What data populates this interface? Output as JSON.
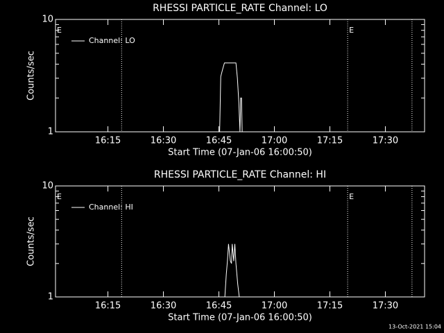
{
  "chart_data": [
    {
      "type": "line",
      "title": "RHESSI PARTICLE_RATE Channel: LO",
      "xlabel": "Start Time (07-Jan-06 16:00:50)",
      "ylabel": "Counts/sec",
      "ylog": true,
      "ylim": [
        1,
        10
      ],
      "yticks": [
        1,
        10
      ],
      "minor_yticks": [
        2,
        3,
        4,
        5,
        6,
        7,
        8,
        9
      ],
      "xlim": [
        960.83,
        1060.6
      ],
      "xticks": [
        {
          "value": 975,
          "label": "16:15"
        },
        {
          "value": 990,
          "label": "16:30"
        },
        {
          "value": 1005,
          "label": "16:45"
        },
        {
          "value": 1020,
          "label": "17:00"
        },
        {
          "value": 1035,
          "label": "17:15"
        },
        {
          "value": 1050,
          "label": "17:30"
        }
      ],
      "vlines": [
        978.7,
        1039.8,
        1057.2
      ],
      "annotations": [
        {
          "text": "E",
          "x": 960.83
        },
        {
          "text": "E",
          "x": 1039.8
        }
      ],
      "legend": "upper left",
      "series": [
        {
          "name": "Channel: LO",
          "color": "#ffffff",
          "x": [
            1005.2,
            1005.5,
            1006.0,
            1006.5,
            1006.8,
            1009.6,
            1010.0,
            1010.4,
            1010.7,
            1010.9,
            1011.1,
            1011.3,
            1011.5
          ],
          "values": [
            1,
            3.1,
            3.6,
            4.1,
            4.1,
            4.1,
            3.0,
            1.8,
            1,
            2.0,
            2.0,
            1,
            1
          ]
        }
      ]
    },
    {
      "type": "line",
      "title": "RHESSI PARTICLE_RATE Channel: HI",
      "xlabel": "Start Time (07-Jan-06 16:00:50)",
      "ylabel": "Counts/sec",
      "ylog": true,
      "ylim": [
        1,
        10
      ],
      "yticks": [
        1,
        10
      ],
      "minor_yticks": [
        2,
        3,
        4,
        5,
        6,
        7,
        8,
        9
      ],
      "xlim": [
        960.83,
        1060.6
      ],
      "xticks": [
        {
          "value": 975,
          "label": "16:15"
        },
        {
          "value": 990,
          "label": "16:30"
        },
        {
          "value": 1005,
          "label": "16:45"
        },
        {
          "value": 1020,
          "label": "17:00"
        },
        {
          "value": 1035,
          "label": "17:15"
        },
        {
          "value": 1050,
          "label": "17:30"
        }
      ],
      "vlines": [
        978.7,
        1039.8,
        1057.2
      ],
      "annotations": [
        {
          "text": "E",
          "x": 960.83
        },
        {
          "text": "E",
          "x": 1039.8
        }
      ],
      "legend": "upper left",
      "series": [
        {
          "name": "Channel: HI",
          "color": "#ffffff",
          "x": [
            1006.6,
            1007.0,
            1007.3,
            1007.6,
            1008.1,
            1008.4,
            1008.6,
            1009.0,
            1009.3,
            1009.6,
            1010.1,
            1010.5
          ],
          "values": [
            1,
            1.6,
            2.1,
            3.0,
            2.1,
            2.0,
            3.0,
            2.1,
            3.0,
            2.0,
            1.3,
            1
          ]
        }
      ]
    }
  ],
  "footer": "13-Oct-2021 15:04"
}
